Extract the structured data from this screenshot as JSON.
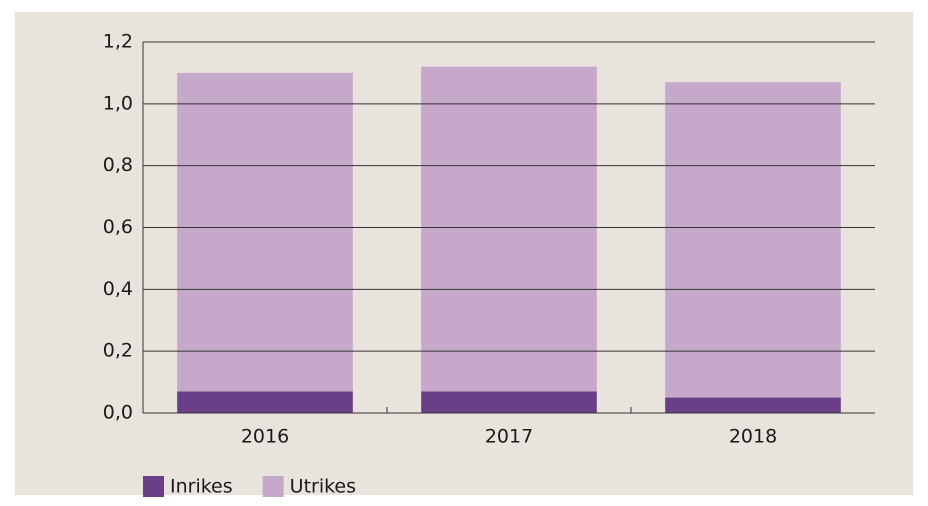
{
  "chart_data": {
    "type": "stacked_bar",
    "categories": [
      "2016",
      "2017",
      "2018"
    ],
    "series": [
      {
        "name": "Inrikes",
        "color": "#6b3f87",
        "values": [
          0.07,
          0.07,
          0.05
        ]
      },
      {
        "name": "Utrikes",
        "color": "#c6a9ca",
        "values": [
          1.03,
          1.05,
          1.02
        ]
      }
    ],
    "ylim": [
      0,
      1.2
    ],
    "yticks": [
      {
        "value": 0,
        "label": "0,0"
      },
      {
        "value": 0.2,
        "label": "0,2"
      },
      {
        "value": 0.4,
        "label": "0,4"
      },
      {
        "value": 0.6,
        "label": "0,6"
      },
      {
        "value": 0.8,
        "label": "0,8"
      },
      {
        "value": 1.0,
        "label": "1,0"
      },
      {
        "value": 1.2,
        "label": "1,2"
      }
    ],
    "grid": true,
    "legend": "bottom-left"
  }
}
